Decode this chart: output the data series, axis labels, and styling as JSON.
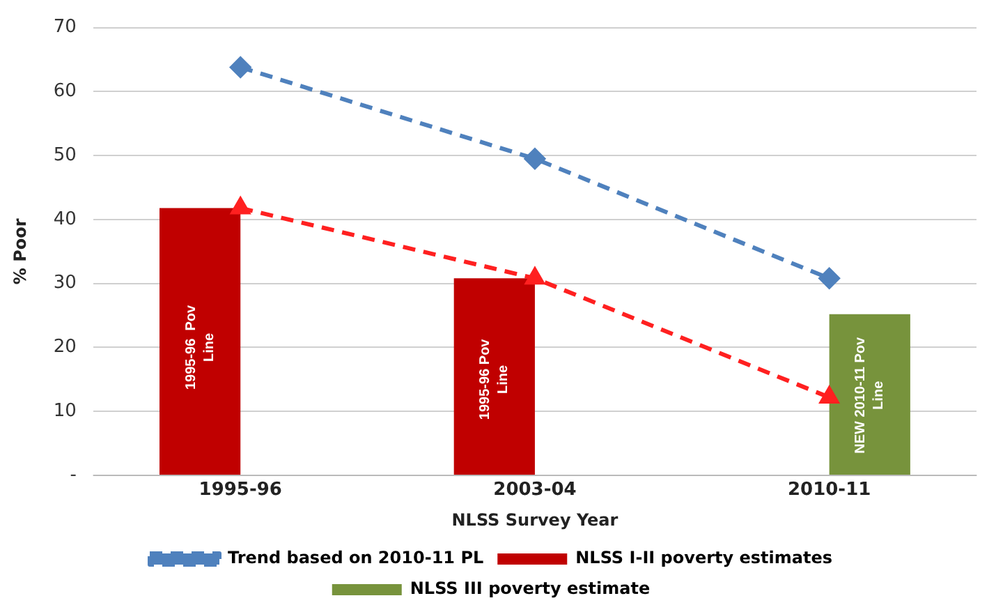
{
  "chart_data": {
    "type": "bar",
    "xlabel": "NLSS Survey Year",
    "ylabel": "% Poor",
    "categories": [
      "1995-96",
      "2003-04",
      "2010-11"
    ],
    "series": [
      {
        "name": "NLSS I-II poverty estimates",
        "color": "#c00000",
        "values": [
          41.8,
          30.8,
          null
        ]
      },
      {
        "name": "NLSS III poverty estimate",
        "color": "#77933c",
        "values": [
          null,
          null,
          25.2
        ]
      },
      {
        "type": "line",
        "color": "#ff2020",
        "values": [
          41.8,
          30.8,
          12.2
        ],
        "marker": "triangle",
        "line_style": "dashed"
      },
      {
        "type": "line",
        "name": "Trend based on 2010-11 PL",
        "color": "#4f81bd",
        "values": [
          63.8,
          49.5,
          30.8
        ],
        "marker": "diamond",
        "line_style": "dashed"
      }
    ],
    "ylim": [
      0,
      70
    ],
    "yticks": [
      {
        "value": 0,
        "label": "-"
      },
      10,
      20,
      30,
      40,
      50,
      60,
      70
    ],
    "grid": "y",
    "legend": "bottom",
    "annotations": [
      {
        "text": "1995-96  Pov Line",
        "x": "1995-96",
        "y": 20
      },
      {
        "text": "1995-96 Pov Line",
        "x": "2003-04",
        "y": 15
      },
      {
        "text": "NEW 2010-11 Pov Line",
        "x": "2010-11",
        "y": 12.5
      }
    ]
  }
}
